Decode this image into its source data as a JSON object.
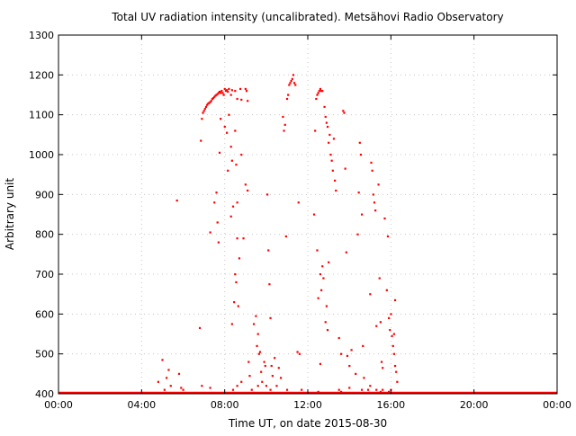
{
  "chart_data": {
    "type": "scatter",
    "title": "Total UV radiation intensity (uncalibrated). Metsähovi Radio Observatory",
    "xlabel": "Time UT, on date 2015-08-30",
    "ylabel": "Arbitrary unit",
    "x_unit": "hours UT",
    "xlim": [
      0,
      24
    ],
    "ylim": [
      400,
      1300
    ],
    "x_ticks": [
      {
        "value": 0,
        "label": "00:00"
      },
      {
        "value": 4,
        "label": "04:00"
      },
      {
        "value": 8,
        "label": "08:00"
      },
      {
        "value": 12,
        "label": "12:00"
      },
      {
        "value": 16,
        "label": "16:00"
      },
      {
        "value": 20,
        "label": "20:00"
      },
      {
        "value": 24,
        "label": "00:00"
      }
    ],
    "y_ticks": [
      400,
      500,
      600,
      700,
      800,
      900,
      1000,
      1100,
      1200,
      1300
    ],
    "grid": "dotted",
    "legend": "none",
    "colors": {
      "points": "#ff0000",
      "axis": "#000000",
      "grid": "#c8c8c8"
    },
    "series": [
      {
        "baseline": {
          "y": 400,
          "x_start": 0,
          "x_end": 24,
          "note_values_clamped_at_axis_floor": true
        },
        "points": [
          [
            4.8,
            430
          ],
          [
            5.0,
            485
          ],
          [
            5.1,
            410
          ],
          [
            5.2,
            440
          ],
          [
            5.3,
            460
          ],
          [
            5.4,
            420
          ],
          [
            5.7,
            885
          ],
          [
            5.8,
            450
          ],
          [
            5.9,
            415
          ],
          [
            6.0,
            410
          ],
          [
            6.8,
            565
          ],
          [
            6.85,
            1035
          ],
          [
            6.9,
            1090
          ],
          [
            6.95,
            1105
          ],
          [
            7.0,
            1110
          ],
          [
            7.05,
            1115
          ],
          [
            7.1,
            1120
          ],
          [
            7.15,
            1125
          ],
          [
            7.2,
            1128
          ],
          [
            7.25,
            1130
          ],
          [
            7.3,
            1132
          ],
          [
            7.35,
            1135
          ],
          [
            7.4,
            1140
          ],
          [
            7.45,
            1142
          ],
          [
            7.5,
            1145
          ],
          [
            7.55,
            1148
          ],
          [
            7.6,
            1150
          ],
          [
            7.65,
            1152
          ],
          [
            7.7,
            1155
          ],
          [
            7.75,
            1158
          ],
          [
            7.8,
            1155
          ],
          [
            7.85,
            1160
          ],
          [
            7.9,
            1155
          ],
          [
            7.95,
            1150
          ],
          [
            8.0,
            1165
          ],
          [
            8.05,
            1160
          ],
          [
            8.1,
            1162
          ],
          [
            8.15,
            1158
          ],
          [
            8.2,
            1165
          ],
          [
            8.3,
            1150
          ],
          [
            8.35,
            1162
          ],
          [
            8.5,
            1160
          ],
          [
            8.6,
            1140
          ],
          [
            8.75,
            1165
          ],
          [
            8.8,
            1138
          ],
          [
            9.0,
            1165
          ],
          [
            9.05,
            1160
          ],
          [
            9.1,
            1135
          ],
          [
            7.3,
            805
          ],
          [
            7.5,
            880
          ],
          [
            7.6,
            905
          ],
          [
            7.65,
            830
          ],
          [
            7.7,
            780
          ],
          [
            7.75,
            1005
          ],
          [
            7.8,
            1090
          ],
          [
            8.0,
            1070
          ],
          [
            8.1,
            1055
          ],
          [
            8.15,
            960
          ],
          [
            8.2,
            1100
          ],
          [
            8.3,
            1020
          ],
          [
            8.35,
            985
          ],
          [
            8.4,
            870
          ],
          [
            8.5,
            1060
          ],
          [
            8.55,
            975
          ],
          [
            8.6,
            880
          ],
          [
            8.7,
            740
          ],
          [
            8.8,
            1000
          ],
          [
            8.9,
            790
          ],
          [
            8.3,
            845
          ],
          [
            8.35,
            575
          ],
          [
            8.45,
            630
          ],
          [
            8.5,
            700
          ],
          [
            8.55,
            680
          ],
          [
            8.6,
            790
          ],
          [
            8.65,
            620
          ],
          [
            9.0,
            925
          ],
          [
            9.1,
            910
          ],
          [
            9.15,
            480
          ],
          [
            9.2,
            445
          ],
          [
            9.4,
            575
          ],
          [
            9.5,
            595
          ],
          [
            9.55,
            520
          ],
          [
            9.6,
            550
          ],
          [
            9.65,
            500
          ],
          [
            9.7,
            505
          ],
          [
            9.75,
            455
          ],
          [
            9.8,
            430
          ],
          [
            9.9,
            480
          ],
          [
            9.95,
            470
          ],
          [
            10.0,
            420
          ],
          [
            10.05,
            900
          ],
          [
            10.1,
            760
          ],
          [
            10.15,
            675
          ],
          [
            10.2,
            590
          ],
          [
            10.25,
            470
          ],
          [
            10.3,
            445
          ],
          [
            10.4,
            490
          ],
          [
            10.5,
            420
          ],
          [
            10.6,
            465
          ],
          [
            10.7,
            440
          ],
          [
            10.8,
            1095
          ],
          [
            10.85,
            1060
          ],
          [
            10.9,
            1075
          ],
          [
            10.95,
            795
          ],
          [
            11.0,
            1140
          ],
          [
            11.05,
            1150
          ],
          [
            11.1,
            1175
          ],
          [
            11.15,
            1180
          ],
          [
            11.2,
            1185
          ],
          [
            11.25,
            1190
          ],
          [
            11.3,
            1200
          ],
          [
            11.35,
            1180
          ],
          [
            11.4,
            1175
          ],
          [
            11.5,
            505
          ],
          [
            11.55,
            880
          ],
          [
            11.6,
            500
          ],
          [
            11.7,
            410
          ],
          [
            12.3,
            850
          ],
          [
            12.35,
            1060
          ],
          [
            12.4,
            1140
          ],
          [
            12.45,
            1150
          ],
          [
            12.5,
            1155
          ],
          [
            12.55,
            1160
          ],
          [
            12.6,
            1165
          ],
          [
            12.65,
            1160
          ],
          [
            12.7,
            1160
          ],
          [
            12.8,
            1120
          ],
          [
            12.85,
            1095
          ],
          [
            12.9,
            1080
          ],
          [
            12.95,
            1070
          ],
          [
            13.0,
            1030
          ],
          [
            13.05,
            1050
          ],
          [
            13.1,
            1000
          ],
          [
            13.15,
            985
          ],
          [
            13.2,
            960
          ],
          [
            13.25,
            1040
          ],
          [
            13.3,
            935
          ],
          [
            13.35,
            910
          ],
          [
            12.45,
            760
          ],
          [
            12.5,
            640
          ],
          [
            12.6,
            700
          ],
          [
            12.65,
            660
          ],
          [
            12.7,
            720
          ],
          [
            12.75,
            690
          ],
          [
            12.85,
            580
          ],
          [
            12.9,
            620
          ],
          [
            12.95,
            560
          ],
          [
            13.0,
            730
          ],
          [
            12.6,
            475
          ],
          [
            13.5,
            540
          ],
          [
            13.6,
            500
          ],
          [
            13.7,
            1110
          ],
          [
            13.75,
            1105
          ],
          [
            13.8,
            965
          ],
          [
            13.85,
            755
          ],
          [
            13.9,
            495
          ],
          [
            14.0,
            470
          ],
          [
            14.1,
            510
          ],
          [
            14.3,
            450
          ],
          [
            14.4,
            800
          ],
          [
            14.45,
            905
          ],
          [
            14.5,
            1030
          ],
          [
            14.55,
            1000
          ],
          [
            14.6,
            850
          ],
          [
            14.65,
            520
          ],
          [
            14.7,
            440
          ],
          [
            14.9,
            410
          ],
          [
            15.0,
            650
          ],
          [
            15.05,
            980
          ],
          [
            15.1,
            960
          ],
          [
            15.15,
            900
          ],
          [
            15.2,
            880
          ],
          [
            15.25,
            860
          ],
          [
            15.3,
            570
          ],
          [
            15.4,
            925
          ],
          [
            15.45,
            690
          ],
          [
            15.5,
            580
          ],
          [
            15.55,
            480
          ],
          [
            15.6,
            465
          ],
          [
            15.7,
            840
          ],
          [
            15.8,
            660
          ],
          [
            15.85,
            795
          ],
          [
            15.9,
            590
          ],
          [
            15.95,
            560
          ],
          [
            16.0,
            600
          ],
          [
            16.05,
            545
          ],
          [
            16.1,
            520
          ],
          [
            16.15,
            500
          ],
          [
            16.2,
            470
          ],
          [
            16.25,
            455
          ],
          [
            16.3,
            430
          ],
          [
            16.2,
            635
          ],
          [
            16.15,
            550
          ],
          [
            16.0,
            410
          ],
          [
            15.9,
            405
          ],
          [
            15.6,
            410
          ],
          [
            15.5,
            405
          ],
          [
            6.9,
            420
          ],
          [
            7.3,
            415
          ],
          [
            8.4,
            410
          ],
          [
            8.6,
            420
          ],
          [
            8.8,
            430
          ],
          [
            9.3,
            410
          ],
          [
            9.6,
            420
          ],
          [
            10.2,
            410
          ],
          [
            11.0,
            410
          ],
          [
            12.5,
            405
          ],
          [
            13.5,
            410
          ],
          [
            13.6,
            405
          ],
          [
            14.0,
            415
          ],
          [
            14.6,
            410
          ],
          [
            15.0,
            420
          ],
          [
            15.3,
            410
          ]
        ]
      }
    ]
  }
}
